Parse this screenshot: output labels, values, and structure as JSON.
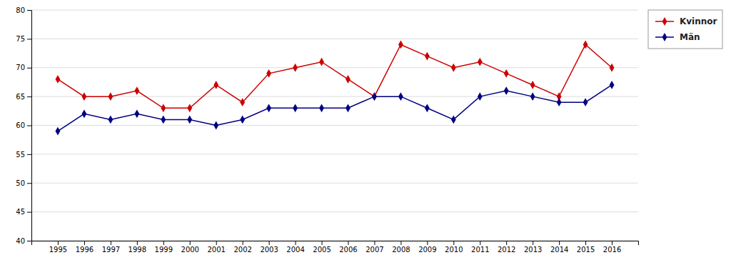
{
  "chart_data": {
    "type": "line",
    "x": [
      1995,
      1996,
      1997,
      1998,
      1999,
      2000,
      2001,
      2002,
      2003,
      2004,
      2005,
      2006,
      2007,
      2008,
      2009,
      2010,
      2011,
      2012,
      2013,
      2014,
      2015,
      2016
    ],
    "xlim": [
      1994,
      2017
    ],
    "xticks": [
      1995,
      1996,
      1997,
      1998,
      1999,
      2000,
      2001,
      2002,
      2003,
      2004,
      2005,
      2006,
      2007,
      2008,
      2009,
      2010,
      2011,
      2012,
      2013,
      2014,
      2015,
      2016
    ],
    "ylim": [
      40,
      80
    ],
    "yticks": [
      40,
      45,
      50,
      55,
      60,
      65,
      70,
      75,
      80
    ],
    "grid": true,
    "legend": "upper right",
    "marker": "diamond",
    "series": [
      {
        "name": "Kvinnor",
        "color": "#cc0000",
        "values": [
          68,
          65,
          65,
          66,
          63,
          63,
          67,
          64,
          69,
          70,
          71,
          68,
          65,
          74,
          72,
          70,
          71,
          69,
          67,
          65,
          74,
          70
        ]
      },
      {
        "name": "Män",
        "color": "#000080",
        "values": [
          59,
          62,
          61,
          62,
          61,
          61,
          60,
          61,
          63,
          63,
          63,
          63,
          65,
          65,
          63,
          61,
          65,
          66,
          65,
          64,
          64,
          67
        ]
      }
    ]
  }
}
